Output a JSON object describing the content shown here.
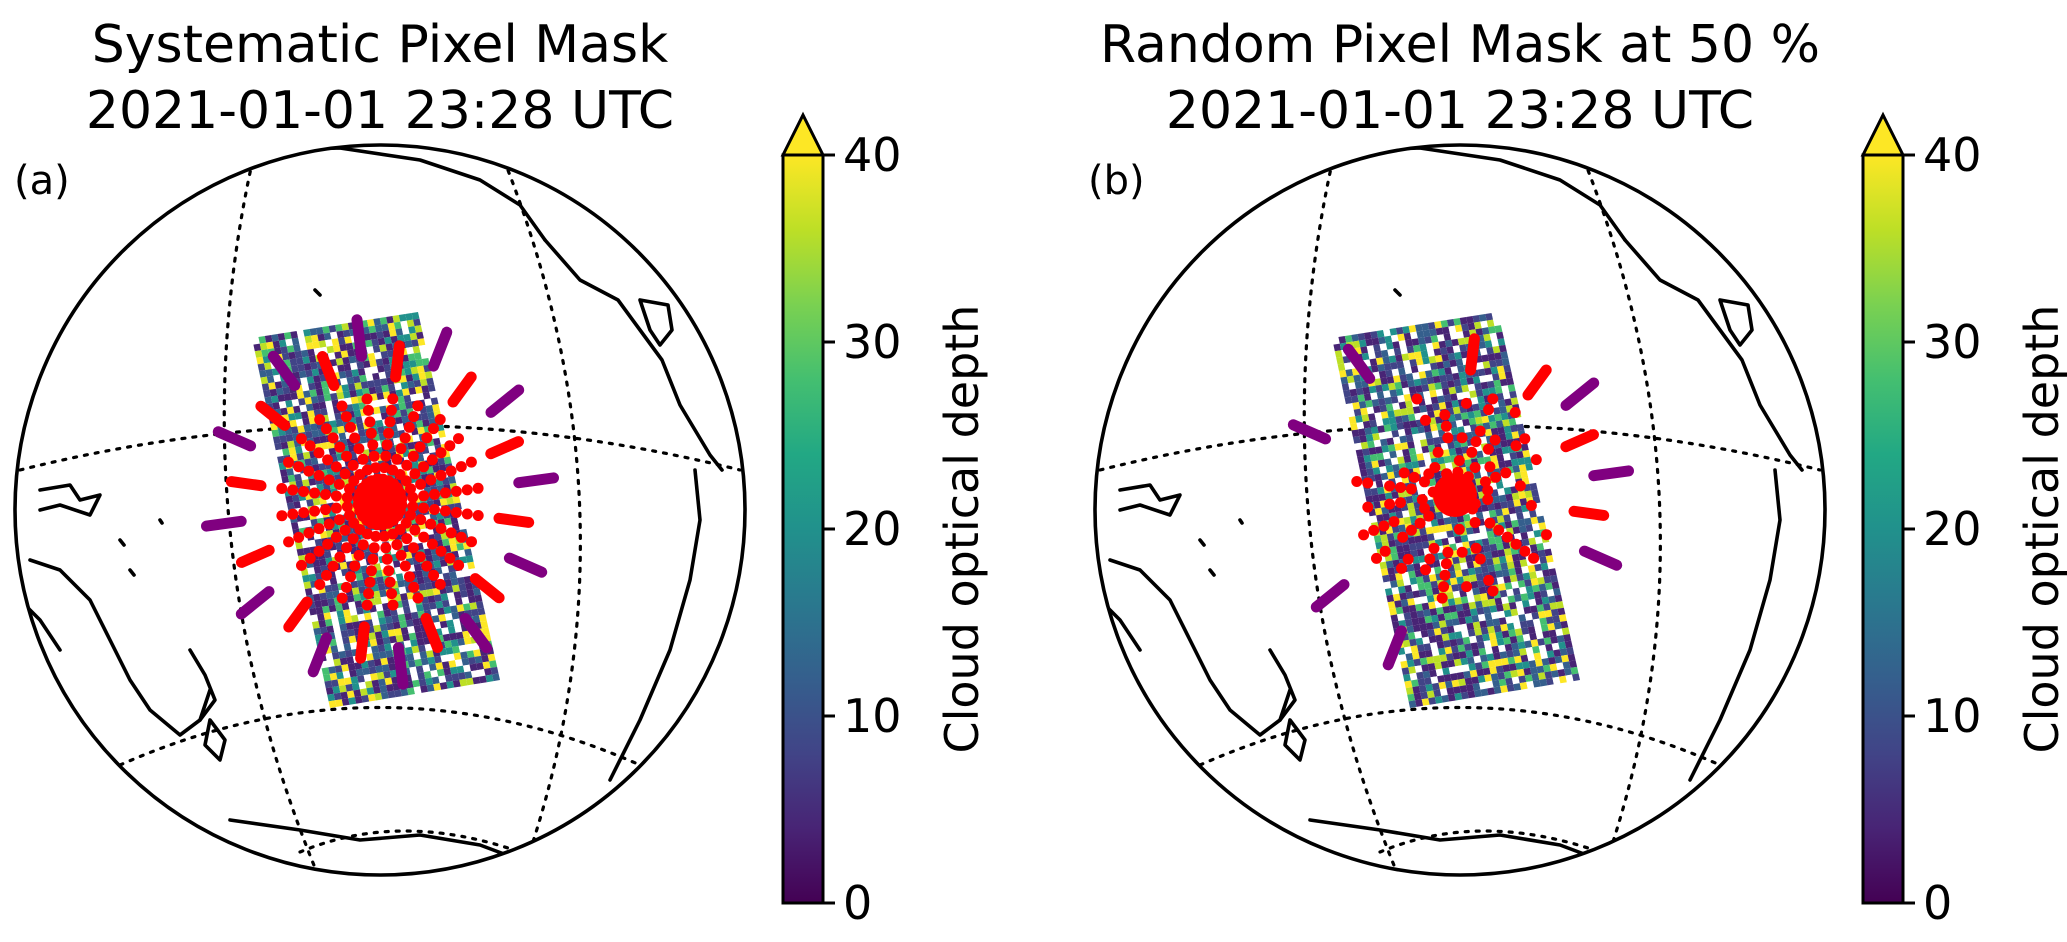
{
  "panels": [
    {
      "id": "a",
      "label": "(a)",
      "title_line1": "Systematic Pixel Mask",
      "title_line2": "2021-01-01 23:28 UTC",
      "mask_type": "systematic"
    },
    {
      "id": "b",
      "label": "(b)",
      "title_line1": "Random Pixel Mask at 50 %",
      "title_line2": "2021-01-01 23:28 UTC",
      "mask_type": "random"
    }
  ],
  "colorbar": {
    "label": "Cloud optical depth",
    "ticks": [
      "0",
      "10",
      "20",
      "30",
      "40"
    ],
    "range": [
      0,
      40
    ],
    "extend": "max",
    "colormap": "viridis",
    "levels": 20,
    "colors": [
      "#440154",
      "#482475",
      "#414487",
      "#355f8d",
      "#2a788e",
      "#21918c",
      "#22a884",
      "#44bf70",
      "#7ad151",
      "#bddf26",
      "#fde725"
    ]
  },
  "chart_data": [
    {
      "type": "heatmap",
      "title": "Systematic Pixel Mask 2021-01-01 23:28 UTC",
      "panel_label": "(a)",
      "projection": "orthographic",
      "variable": "Cloud optical depth",
      "clim": [
        0,
        40
      ],
      "overlay": "systematic red/purple sampling spokes"
    },
    {
      "type": "heatmap",
      "title": "Random Pixel Mask at 50 % 2021-01-01 23:28 UTC",
      "panel_label": "(b)",
      "projection": "orthographic",
      "variable": "Cloud optical depth",
      "clim": [
        0,
        40
      ],
      "overlay": "random 50 % sampling spokes"
    }
  ],
  "colors": {
    "mask_inner": "#ff0000",
    "mask_outer": "#800080",
    "outline": "#000000"
  }
}
